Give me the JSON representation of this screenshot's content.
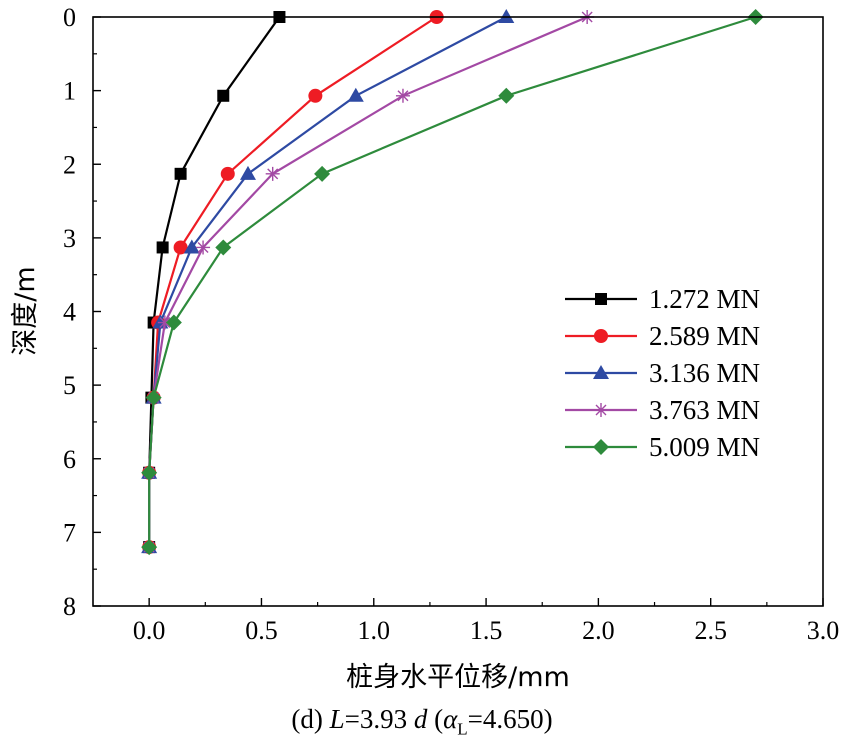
{
  "chart_data": {
    "type": "line",
    "xlabel": "桩身水平位移/mm",
    "ylabel": "深度/m",
    "xlim": [
      -0.25,
      3.0
    ],
    "ylim": [
      0,
      8
    ],
    "y_inverted": true,
    "xticks": [
      "0.0",
      "0.5",
      "1.0",
      "1.5",
      "2.0",
      "2.5",
      "3.0"
    ],
    "yticks": [
      "0",
      "1",
      "2",
      "3",
      "4",
      "5",
      "6",
      "7",
      "8"
    ],
    "grid": false,
    "legend_position": "right",
    "series": [
      {
        "name": "1.272 MN",
        "color": "#000000",
        "marker": "square",
        "x": [
          0.58,
          0.33,
          0.14,
          0.06,
          0.02,
          0.01,
          0.0,
          0.0
        ],
        "y": [
          0,
          1.07,
          2.13,
          3.13,
          4.15,
          5.17,
          6.19,
          7.2
        ]
      },
      {
        "name": "2.589 MN",
        "color": "#ee1c24",
        "marker": "circle",
        "x": [
          1.28,
          0.74,
          0.35,
          0.14,
          0.04,
          0.02,
          0.0,
          0.0
        ],
        "y": [
          0,
          1.07,
          2.13,
          3.13,
          4.15,
          5.17,
          6.19,
          7.2
        ]
      },
      {
        "name": "3.136 MN",
        "color": "#2e4aa3",
        "marker": "triangle",
        "x": [
          1.59,
          0.92,
          0.44,
          0.19,
          0.05,
          0.02,
          0.0,
          0.0
        ],
        "y": [
          0,
          1.07,
          2.13,
          3.13,
          4.15,
          5.17,
          6.19,
          7.2
        ]
      },
      {
        "name": "3.763 MN",
        "color": "#a349a4",
        "marker": "star",
        "x": [
          1.95,
          1.13,
          0.55,
          0.24,
          0.07,
          0.02,
          0.0,
          0.0
        ],
        "y": [
          0,
          1.07,
          2.13,
          3.13,
          4.15,
          5.17,
          6.19,
          7.2
        ]
      },
      {
        "name": "5.009 MN",
        "color": "#2e8b3c",
        "marker": "diamond",
        "x": [
          2.7,
          1.59,
          0.77,
          0.33,
          0.11,
          0.02,
          0.0,
          0.0
        ],
        "y": [
          0,
          1.07,
          2.13,
          3.13,
          4.15,
          5.17,
          6.19,
          7.2
        ]
      }
    ]
  },
  "caption": {
    "part_prefix": "(d) ",
    "L_symbol": "L",
    "eq1": "=3.93 ",
    "d_symbol": "d",
    "open": " (",
    "alpha_symbol": "α",
    "alpha_sub": "L",
    "eq2": "=4.650)"
  }
}
